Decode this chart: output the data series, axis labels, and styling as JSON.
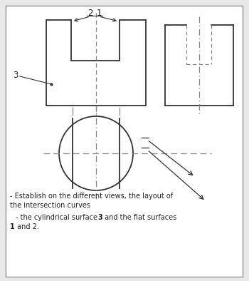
{
  "bg_color": "#e8e8e8",
  "inner_bg": "#ffffff",
  "line_color": "#333333",
  "dash_color": "#888888",
  "text_color": "#222222",
  "border_color": "#999999",
  "label_2": "2",
  "label_1": "1",
  "label_3": "3",
  "figsize": [
    3.5,
    3.94
  ],
  "dpi": 100
}
